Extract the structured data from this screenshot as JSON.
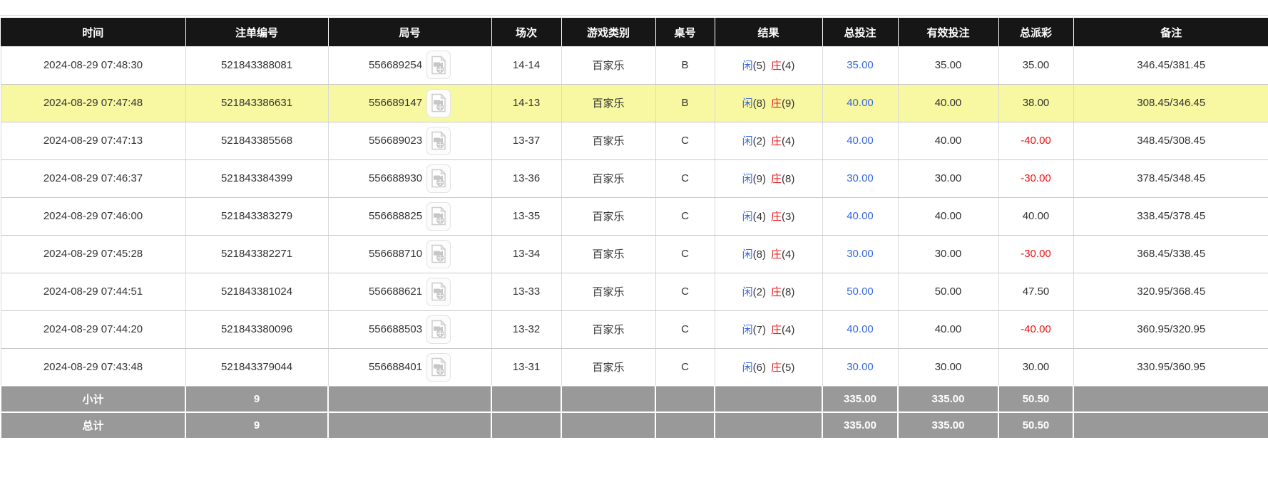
{
  "colors": {
    "header_bg": "#161616",
    "accent_blue": "#3567e0",
    "negative_red": "#ee1111",
    "banker_red": "#e62222",
    "highlight_yellow": "#f8f8a2",
    "summary_bg": "#999999"
  },
  "icons": {
    "video_replay": "video-file-icon"
  },
  "table": {
    "columns": [
      {
        "key": "time",
        "label": "时间"
      },
      {
        "key": "bet_id",
        "label": "注单编号"
      },
      {
        "key": "round_id",
        "label": "局号"
      },
      {
        "key": "session",
        "label": "场次"
      },
      {
        "key": "game_type",
        "label": "游戏类别"
      },
      {
        "key": "table_no",
        "label": "桌号"
      },
      {
        "key": "result",
        "label": "结果"
      },
      {
        "key": "total_bet",
        "label": "总投注"
      },
      {
        "key": "valid_bet",
        "label": "有效投注"
      },
      {
        "key": "total_payout",
        "label": "总派彩"
      },
      {
        "key": "remark",
        "label": "备注"
      }
    ],
    "rows": [
      {
        "time": "2024-08-29 07:48:30",
        "bet_id": "521843388081",
        "round_id": "556689254",
        "session": "14-14",
        "game_type": "百家乐",
        "table_no": "B",
        "result": {
          "player_label": "闲",
          "player_value": "(5)",
          "banker_label": "庄",
          "banker_value": "(4)"
        },
        "total_bet": "35.00",
        "valid_bet": "35.00",
        "total_payout": "35.00",
        "remark": "346.45/381.45",
        "highlighted": false
      },
      {
        "time": "2024-08-29 07:47:48",
        "bet_id": "521843386631",
        "round_id": "556689147",
        "session": "14-13",
        "game_type": "百家乐",
        "table_no": "B",
        "result": {
          "player_label": "闲",
          "player_value": "(8)",
          "banker_label": "庄",
          "banker_value": "(9)"
        },
        "total_bet": "40.00",
        "valid_bet": "40.00",
        "total_payout": "38.00",
        "remark": "308.45/346.45",
        "highlighted": true
      },
      {
        "time": "2024-08-29 07:47:13",
        "bet_id": "521843385568",
        "round_id": "556689023",
        "session": "13-37",
        "game_type": "百家乐",
        "table_no": "C",
        "result": {
          "player_label": "闲",
          "player_value": "(2)",
          "banker_label": "庄",
          "banker_value": "(4)"
        },
        "total_bet": "40.00",
        "valid_bet": "40.00",
        "total_payout": "-40.00",
        "remark": "348.45/308.45",
        "highlighted": false
      },
      {
        "time": "2024-08-29 07:46:37",
        "bet_id": "521843384399",
        "round_id": "556688930",
        "session": "13-36",
        "game_type": "百家乐",
        "table_no": "C",
        "result": {
          "player_label": "闲",
          "player_value": "(9)",
          "banker_label": "庄",
          "banker_value": "(8)"
        },
        "total_bet": "30.00",
        "valid_bet": "30.00",
        "total_payout": "-30.00",
        "remark": "378.45/348.45",
        "highlighted": false
      },
      {
        "time": "2024-08-29 07:46:00",
        "bet_id": "521843383279",
        "round_id": "556688825",
        "session": "13-35",
        "game_type": "百家乐",
        "table_no": "C",
        "result": {
          "player_label": "闲",
          "player_value": "(4)",
          "banker_label": "庄",
          "banker_value": "(3)"
        },
        "total_bet": "40.00",
        "valid_bet": "40.00",
        "total_payout": "40.00",
        "remark": "338.45/378.45",
        "highlighted": false
      },
      {
        "time": "2024-08-29 07:45:28",
        "bet_id": "521843382271",
        "round_id": "556688710",
        "session": "13-34",
        "game_type": "百家乐",
        "table_no": "C",
        "result": {
          "player_label": "闲",
          "player_value": "(8)",
          "banker_label": "庄",
          "banker_value": "(4)"
        },
        "total_bet": "30.00",
        "valid_bet": "30.00",
        "total_payout": "-30.00",
        "remark": "368.45/338.45",
        "highlighted": false
      },
      {
        "time": "2024-08-29 07:44:51",
        "bet_id": "521843381024",
        "round_id": "556688621",
        "session": "13-33",
        "game_type": "百家乐",
        "table_no": "C",
        "result": {
          "player_label": "闲",
          "player_value": "(2)",
          "banker_label": "庄",
          "banker_value": "(8)"
        },
        "total_bet": "50.00",
        "valid_bet": "50.00",
        "total_payout": "47.50",
        "remark": "320.95/368.45",
        "highlighted": false
      },
      {
        "time": "2024-08-29 07:44:20",
        "bet_id": "521843380096",
        "round_id": "556688503",
        "session": "13-32",
        "game_type": "百家乐",
        "table_no": "C",
        "result": {
          "player_label": "闲",
          "player_value": "(7)",
          "banker_label": "庄",
          "banker_value": "(4)"
        },
        "total_bet": "40.00",
        "valid_bet": "40.00",
        "total_payout": "-40.00",
        "remark": "360.95/320.95",
        "highlighted": false
      },
      {
        "time": "2024-08-29 07:43:48",
        "bet_id": "521843379044",
        "round_id": "556688401",
        "session": "13-31",
        "game_type": "百家乐",
        "table_no": "C",
        "result": {
          "player_label": "闲",
          "player_value": "(6)",
          "banker_label": "庄",
          "banker_value": "(5)"
        },
        "total_bet": "30.00",
        "valid_bet": "30.00",
        "total_payout": "30.00",
        "remark": "330.95/360.95",
        "highlighted": false
      }
    ],
    "summary_rows": [
      {
        "label": "小计",
        "count": "9",
        "total_bet": "335.00",
        "valid_bet": "335.00",
        "total_payout": "50.50"
      },
      {
        "label": "总计",
        "count": "9",
        "total_bet": "335.00",
        "valid_bet": "335.00",
        "total_payout": "50.50"
      }
    ]
  }
}
